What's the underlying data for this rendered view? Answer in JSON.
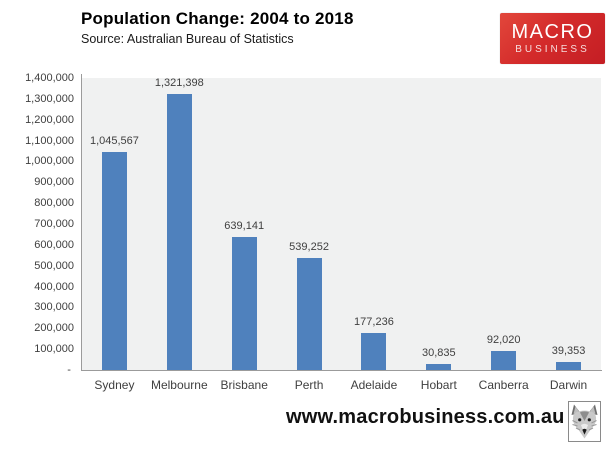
{
  "header": {
    "title": "Population Change: 2004 to 2018",
    "source": "Source: Australian Bureau of Statistics"
  },
  "logo": {
    "line1": "MACRO",
    "line2": "BUSINESS",
    "background_color": "#cf2429",
    "text_color": "#ffffff"
  },
  "footer": {
    "url": "www.macrobusiness.com.au",
    "wolf_icon": "wolf-head-emblem"
  },
  "chart_data": {
    "type": "bar",
    "title": "Population Change: 2004 to 2018",
    "subtitle": "Source: Australian Bureau of Statistics",
    "categories": [
      "Sydney",
      "Melbourne",
      "Brisbane",
      "Perth",
      "Adelaide",
      "Hobart",
      "Canberra",
      "Darwin"
    ],
    "values": [
      1045567,
      1321398,
      639141,
      539252,
      177236,
      30835,
      92020,
      39353
    ],
    "value_labels": [
      "1,045,567",
      "1,321,398",
      "639,141",
      "539,252",
      "177,236",
      "30,835",
      "92,020",
      "39,353"
    ],
    "y_ticks_top_to_bottom": [
      "1,400,000",
      "1,300,000",
      "1,200,000",
      "1,100,000",
      "1,000,000",
      "900,000",
      "800,000",
      "700,000",
      "600,000",
      "500,000",
      "400,000",
      "300,000",
      "200,000",
      "100,000",
      "- "
    ],
    "ylim": [
      0,
      1400000
    ],
    "y_tick_interval": 100000,
    "xlabel": "",
    "ylabel": "",
    "grid": false,
    "legend": false,
    "bar_color": "#4f81bd",
    "plot_background": "#f0f1f1",
    "axis_color": "#9b9b9b",
    "label_color": "#3f3f3f"
  }
}
